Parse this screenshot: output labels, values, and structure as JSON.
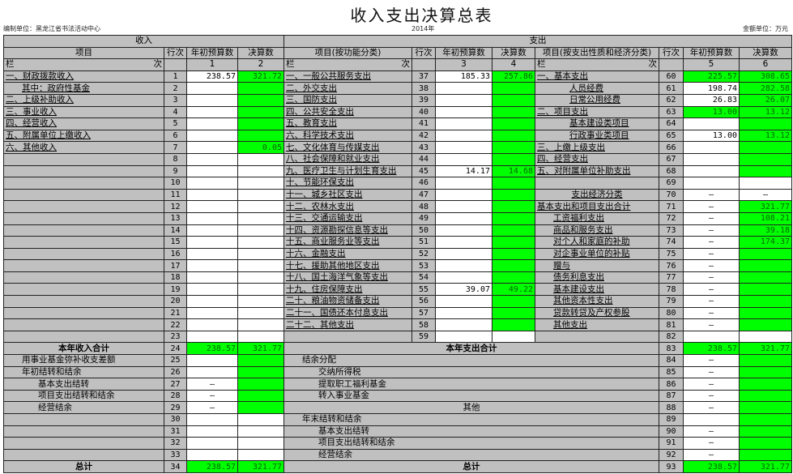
{
  "title": "收入支出决算总表",
  "info": {
    "unit": "编制单位：黑龙江省书法活动中心",
    "year": "2014年",
    "currency": "金额单位：万元"
  },
  "colors": {
    "highlight": "#00ff00",
    "label_bg": "#c0c0c0",
    "value_bg": "#ffffff"
  },
  "header": {
    "income": "收入",
    "expense": "支出",
    "cols": [
      "项目",
      "行次",
      "年初预算数",
      "决算数",
      "项目(按功能分类)",
      "行次",
      "年初预算数",
      "决算数",
      "项目(按支出性质和经济分类)",
      "行次",
      "年初预算数",
      "决算数"
    ],
    "lan": "栏",
    "ci": "次",
    "nums": [
      "1",
      "2",
      "3",
      "4",
      "5",
      "6"
    ]
  },
  "upper_rows": [
    {
      "l": {
        "label": "一、财政拨款收入",
        "line": "1",
        "budget": "238.57",
        "final": "321.72",
        "bg": "wg"
      },
      "m": {
        "label": "一、一般公共服务支出",
        "line": "37",
        "budget": "185.33",
        "final": "257.86",
        "bg": "wg"
      },
      "r": {
        "label": "一、基本支出",
        "line": "60",
        "budget": "225.57",
        "final": "308.65",
        "bg": "gg"
      }
    },
    {
      "l": {
        "label": "其中：政府性基金",
        "indent": 1,
        "line": "2",
        "budget": "",
        "final": "",
        "bg": "wg"
      },
      "m": {
        "label": "二、外交支出",
        "line": "38",
        "budget": "",
        "final": "",
        "bg": "wg"
      },
      "r": {
        "label": "人员经费",
        "indent": 2,
        "line": "61",
        "budget": "198.74",
        "final": "282.58",
        "bg": "wg"
      }
    },
    {
      "l": {
        "label": "二、上级补助收入",
        "line": "3",
        "budget": "",
        "final": "",
        "bg": "wg"
      },
      "m": {
        "label": "三、国防支出",
        "line": "39",
        "budget": "",
        "final": "",
        "bg": "wg"
      },
      "r": {
        "label": "日常公用经费",
        "indent": 2,
        "line": "62",
        "budget": "26.83",
        "final": "26.07",
        "bg": "wg"
      }
    },
    {
      "l": {
        "label": "三、事业收入",
        "line": "4",
        "budget": "",
        "final": "",
        "bg": "wg"
      },
      "m": {
        "label": "四、公共安全支出",
        "line": "40",
        "budget": "",
        "final": "",
        "bg": "wg"
      },
      "r": {
        "label": "二、项目支出",
        "line": "63",
        "budget": "13.00",
        "final": "13.12",
        "bg": "gg"
      }
    },
    {
      "l": {
        "label": "四、经营收入",
        "line": "5",
        "budget": "",
        "final": "",
        "bg": "wg"
      },
      "m": {
        "label": "五、教育支出",
        "line": "41",
        "budget": "",
        "final": "",
        "bg": "wg"
      },
      "r": {
        "label": "基本建设类项目",
        "indent": 2,
        "line": "64",
        "budget": "",
        "final": "",
        "bg": "wg"
      }
    },
    {
      "l": {
        "label": "五、附属单位上缴收入",
        "line": "6",
        "budget": "",
        "final": "",
        "bg": "wg"
      },
      "m": {
        "label": "六、科学技术支出",
        "line": "42",
        "budget": "",
        "final": "",
        "bg": "wg"
      },
      "r": {
        "label": "行政事业类项目",
        "indent": 2,
        "line": "65",
        "budget": "13.00",
        "final": "13.12",
        "bg": "wg"
      }
    },
    {
      "l": {
        "label": "六、其他收入",
        "line": "7",
        "budget": "",
        "final": "0.05",
        "bg": "wg"
      },
      "m": {
        "label": "七、文化体育与传媒支出",
        "line": "43",
        "budget": "",
        "final": "",
        "bg": "wg"
      },
      "r": {
        "label": "三、上缴上级支出",
        "line": "66",
        "budget": "",
        "final": "",
        "bg": "wg"
      }
    },
    {
      "l": {
        "label": "",
        "line": "8",
        "budget": "",
        "final": "",
        "bg": "ww"
      },
      "m": {
        "label": "八、社会保障和就业支出",
        "line": "44",
        "budget": "",
        "final": "",
        "bg": "wg"
      },
      "r": {
        "label": "四、经营支出",
        "line": "67",
        "budget": "",
        "final": "",
        "bg": "wg"
      }
    },
    {
      "l": {
        "label": "",
        "line": "9",
        "budget": "",
        "final": "",
        "bg": "ww"
      },
      "m": {
        "label": "九、医疗卫生与计划生育支出",
        "line": "45",
        "budget": "14.17",
        "final": "14.68",
        "bg": "wg"
      },
      "r": {
        "label": "五、对附属单位补助支出",
        "line": "68",
        "budget": "",
        "final": "",
        "bg": "wg"
      }
    },
    {
      "l": {
        "label": "",
        "line": "10",
        "budget": "",
        "final": "",
        "bg": "ww"
      },
      "m": {
        "label": "十、节能环保支出",
        "line": "46",
        "budget": "",
        "final": "",
        "bg": "wg"
      },
      "r": {
        "label": "",
        "line": "69",
        "budget": "",
        "final": "",
        "bg": "ww"
      }
    },
    {
      "l": {
        "label": "",
        "line": "11",
        "budget": "",
        "final": "",
        "bg": "ww"
      },
      "m": {
        "label": "十一、城乡社区支出",
        "line": "47",
        "budget": "",
        "final": "",
        "bg": "wg"
      },
      "r": {
        "label": "支出经济分类",
        "center": true,
        "line": "70",
        "budget": "—",
        "final": "—",
        "bg": "ww"
      }
    },
    {
      "l": {
        "label": "",
        "line": "12",
        "budget": "",
        "final": "",
        "bg": "ww"
      },
      "m": {
        "label": "十二、农林水支出",
        "line": "48",
        "budget": "",
        "final": "",
        "bg": "wg"
      },
      "r": {
        "label": "基本支出和项目支出合计",
        "line": "71",
        "budget": "—",
        "final": "321.77",
        "bg": "wg"
      }
    },
    {
      "l": {
        "label": "",
        "line": "13",
        "budget": "",
        "final": "",
        "bg": "ww"
      },
      "m": {
        "label": "十三、交通运输支出",
        "line": "49",
        "budget": "",
        "final": "",
        "bg": "wg"
      },
      "r": {
        "label": "工资福利支出",
        "indent": 1,
        "line": "72",
        "budget": "—",
        "final": "108.21",
        "bg": "wg"
      }
    },
    {
      "l": {
        "label": "",
        "line": "14",
        "budget": "",
        "final": "",
        "bg": "ww"
      },
      "m": {
        "label": "十四、资源勘探信息等支出",
        "line": "50",
        "budget": "",
        "final": "",
        "bg": "wg"
      },
      "r": {
        "label": "商品和服务支出",
        "indent": 1,
        "line": "73",
        "budget": "—",
        "final": "39.18",
        "bg": "wg"
      }
    },
    {
      "l": {
        "label": "",
        "line": "15",
        "budget": "",
        "final": "",
        "bg": "ww"
      },
      "m": {
        "label": "十五、商业服务业等支出",
        "line": "51",
        "budget": "",
        "final": "",
        "bg": "wg"
      },
      "r": {
        "label": "对个人和家庭的补助",
        "indent": 1,
        "line": "74",
        "budget": "—",
        "final": "174.37",
        "bg": "wg"
      }
    },
    {
      "l": {
        "label": "",
        "line": "16",
        "budget": "",
        "final": "",
        "bg": "ww"
      },
      "m": {
        "label": "十六、金融支出",
        "line": "52",
        "budget": "",
        "final": "",
        "bg": "wg"
      },
      "r": {
        "label": "对企事业单位的补贴",
        "indent": 1,
        "line": "75",
        "budget": "—",
        "final": "",
        "bg": "wg"
      }
    },
    {
      "l": {
        "label": "",
        "line": "17",
        "budget": "",
        "final": "",
        "bg": "ww"
      },
      "m": {
        "label": "十七、援助其他地区支出",
        "line": "53",
        "budget": "",
        "final": "",
        "bg": "wg"
      },
      "r": {
        "label": "赠与",
        "indent": 1,
        "line": "76",
        "budget": "—",
        "final": "",
        "bg": "wg"
      }
    },
    {
      "l": {
        "label": "",
        "line": "18",
        "budget": "",
        "final": "",
        "bg": "ww"
      },
      "m": {
        "label": "十八、国土海洋气象等支出",
        "line": "54",
        "budget": "",
        "final": "",
        "bg": "wg"
      },
      "r": {
        "label": "债务利息支出",
        "indent": 1,
        "line": "77",
        "budget": "—",
        "final": "",
        "bg": "wg"
      }
    },
    {
      "l": {
        "label": "",
        "line": "19",
        "budget": "",
        "final": "",
        "bg": "ww"
      },
      "m": {
        "label": "十九、住房保障支出",
        "line": "55",
        "budget": "39.07",
        "final": "49.22",
        "bg": "wg"
      },
      "r": {
        "label": "基本建设支出",
        "indent": 1,
        "line": "78",
        "budget": "—",
        "final": "",
        "bg": "wg"
      }
    },
    {
      "l": {
        "label": "",
        "line": "20",
        "budget": "",
        "final": "",
        "bg": "ww"
      },
      "m": {
        "label": "二十、粮油物资储备支出",
        "line": "56",
        "budget": "",
        "final": "",
        "bg": "wg"
      },
      "r": {
        "label": "其他资本性支出",
        "indent": 1,
        "line": "79",
        "budget": "—",
        "final": "",
        "bg": "wg"
      }
    },
    {
      "l": {
        "label": "",
        "line": "21",
        "budget": "",
        "final": "",
        "bg": "ww"
      },
      "m": {
        "label": "二十一、国债还本付息支出",
        "line": "57",
        "budget": "",
        "final": "",
        "bg": "wg"
      },
      "r": {
        "label": "贷款转贷及产权参股",
        "indent": 1,
        "line": "80",
        "budget": "—",
        "final": "",
        "bg": "wg"
      }
    },
    {
      "l": {
        "label": "",
        "line": "22",
        "budget": "",
        "final": "",
        "bg": "ww"
      },
      "m": {
        "label": "二十二、其他支出",
        "line": "58",
        "budget": "",
        "final": "",
        "bg": "wg"
      },
      "r": {
        "label": "其他支出",
        "indent": 1,
        "line": "81",
        "budget": "—",
        "final": "",
        "bg": "wg"
      }
    },
    {
      "l": {
        "label": "",
        "line": "23",
        "budget": "",
        "final": "",
        "bg": "ww"
      },
      "m": {
        "label": "",
        "line": "59",
        "budget": "",
        "final": "",
        "bg": "ww"
      },
      "r": {
        "label": "",
        "line": "82",
        "budget": "",
        "final": "",
        "bg": "ww"
      }
    }
  ],
  "lower_rows": [
    {
      "l": {
        "label": "本年收入合计",
        "bold": true,
        "line": "24",
        "budget": "238.57",
        "final": "321.77",
        "bg": "gg"
      },
      "r": {
        "label": "本年支出合计",
        "bold": true,
        "line": "83",
        "budget": "238.57",
        "final": "321.77",
        "bg": "gg"
      }
    },
    {
      "l": {
        "label": "用事业基金弥补收支差额",
        "indent": 1,
        "line": "25",
        "budget": "",
        "final": "",
        "bg": "wg"
      },
      "r": {
        "label": "结余分配",
        "indent": 1,
        "line": "84",
        "budget": "—",
        "final": "",
        "bg": "wg"
      }
    },
    {
      "l": {
        "label": "年初结转和结余",
        "indent": 1,
        "line": "26",
        "budget": "",
        "final": "",
        "bg": "wg"
      },
      "r": {
        "label": "交纳所得税",
        "indent": 2,
        "line": "85",
        "budget": "—",
        "final": "",
        "bg": "wg"
      }
    },
    {
      "l": {
        "label": "基本支出结转",
        "indent": 2,
        "line": "27",
        "budget": "—",
        "final": "",
        "bg": "wg"
      },
      "r": {
        "label": "提取职工福利基金",
        "indent": 2,
        "line": "86",
        "budget": "—",
        "final": "",
        "bg": "wg"
      }
    },
    {
      "l": {
        "label": "项目支出结转和结余",
        "indent": 2,
        "line": "28",
        "budget": "—",
        "final": "",
        "bg": "wg"
      },
      "r": {
        "label": "转入事业基金",
        "indent": 2,
        "line": "87",
        "budget": "—",
        "final": "",
        "bg": "wg"
      }
    },
    {
      "l": {
        "label": "经营结余",
        "indent": 2,
        "line": "29",
        "budget": "—",
        "final": "",
        "bg": "wg"
      },
      "r": {
        "label": "其他",
        "center": true,
        "line": "88",
        "budget": "—",
        "final": "",
        "bg": "wg"
      }
    },
    {
      "l": {
        "label": "",
        "line": "30",
        "budget": "",
        "final": "",
        "bg": "ww"
      },
      "r": {
        "label": "年末结转和结余",
        "indent": 1,
        "line": "89",
        "budget": "",
        "final": "",
        "bg": "wg"
      }
    },
    {
      "l": {
        "label": "",
        "line": "31",
        "budget": "",
        "final": "",
        "bg": "ww"
      },
      "r": {
        "label": "基本支出结转",
        "indent": 2,
        "line": "90",
        "budget": "—",
        "final": "",
        "bg": "wg"
      }
    },
    {
      "l": {
        "label": "",
        "line": "32",
        "budget": "",
        "final": "",
        "bg": "ww"
      },
      "r": {
        "label": "项目支出结转和结余",
        "indent": 2,
        "line": "91",
        "budget": "—",
        "final": "",
        "bg": "wg"
      }
    },
    {
      "l": {
        "label": "",
        "line": "33",
        "budget": "",
        "final": "",
        "bg": "ww"
      },
      "r": {
        "label": "经营结余",
        "indent": 2,
        "line": "92",
        "budget": "—",
        "final": "",
        "bg": "wg"
      }
    },
    {
      "l": {
        "label": "总计",
        "bold": true,
        "line": "34",
        "budget": "238.57",
        "final": "321.77",
        "bg": "gg"
      },
      "r": {
        "label": "总计",
        "bold": true,
        "line": "93",
        "budget": "238.57",
        "final": "321.77",
        "bg": "gg"
      }
    }
  ]
}
